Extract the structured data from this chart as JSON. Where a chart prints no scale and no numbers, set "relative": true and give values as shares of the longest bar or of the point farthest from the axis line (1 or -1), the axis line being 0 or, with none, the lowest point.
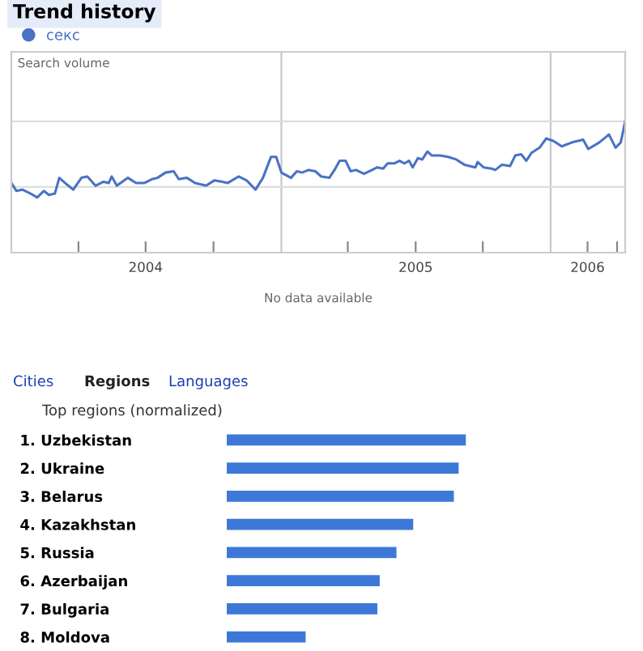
{
  "chart_data": [
    {
      "type": "line",
      "title": "Trend history",
      "relative": true,
      "legend": "top left",
      "grid": false,
      "marker": "none",
      "line_style": "solid",
      "xlim": [
        "2004-01-01",
        "2006-04-12"
      ],
      "xticks": [
        {
          "value": "2004-04-01",
          "label": null
        },
        {
          "value": "2004-07-01",
          "label": "2004"
        },
        {
          "value": "2004-10-01",
          "label": null
        },
        {
          "value": "2005-04-01",
          "label": null
        },
        {
          "value": "2005-07-02",
          "label": "2005"
        },
        {
          "value": "2005-10-01",
          "label": null
        },
        {
          "value": "2006-02-20",
          "label": "2006"
        },
        {
          "value": "2006-04-01",
          "label": null
        }
      ],
      "ref_lines": [
        {
          "axis": "x",
          "value": "2005-01-01",
          "label": null,
          "color": "#c8c8c8"
        },
        {
          "axis": "x",
          "value": "2006-01-01",
          "label": null,
          "color": "#c8c8c8"
        },
        {
          "axis": "y",
          "value": 1,
          "label": null,
          "color": "#dddddd"
        },
        {
          "axis": "y",
          "value": 0.5,
          "label": null,
          "color": "#dddddd"
        }
      ],
      "annotations": [
        "Search volume",
        "No data available"
      ],
      "series": [
        {
          "name": "секс",
          "color": "#4a72c4",
          "x": [
            "2004-01-01",
            "2004-01-08",
            "2004-01-16",
            "2004-01-27",
            "2004-02-05",
            "2004-02-14",
            "2004-02-21",
            "2004-02-29",
            "2004-03-06",
            "2004-03-14",
            "2004-03-25",
            "2004-04-05",
            "2004-04-13",
            "2004-04-24",
            "2004-05-05",
            "2004-05-12",
            "2004-05-16",
            "2004-05-23",
            "2004-06-07",
            "2004-06-18",
            "2004-06-29",
            "2004-07-10",
            "2004-07-17",
            "2004-07-28",
            "2004-08-08",
            "2004-08-15",
            "2004-08-26",
            "2004-09-06",
            "2004-09-21",
            "2004-10-02",
            "2004-10-13",
            "2004-10-20",
            "2004-11-04",
            "2004-11-15",
            "2004-11-27",
            "2004-12-07",
            "2004-12-18",
            "2004-12-25",
            "2005-01-01",
            "2005-01-14",
            "2005-01-22",
            "2005-01-29",
            "2005-02-07",
            "2005-02-16",
            "2005-02-24",
            "2005-03-07",
            "2005-03-14",
            "2005-03-21",
            "2005-03-29",
            "2005-04-05",
            "2005-04-12",
            "2005-04-23",
            "2005-05-04",
            "2005-05-11",
            "2005-05-19",
            "2005-05-25",
            "2005-06-03",
            "2005-06-10",
            "2005-06-17",
            "2005-06-23",
            "2005-06-28",
            "2005-07-05",
            "2005-07-11",
            "2005-07-18",
            "2005-07-24",
            "2005-08-04",
            "2005-08-15",
            "2005-08-26",
            "2005-09-06",
            "2005-09-21",
            "2005-09-24",
            "2005-10-02",
            "2005-10-13",
            "2005-10-18",
            "2005-10-27",
            "2005-11-07",
            "2005-11-14",
            "2005-11-22",
            "2005-11-29",
            "2005-12-06",
            "2005-12-17",
            "2005-12-26",
            "2006-01-05",
            "2006-01-16",
            "2006-01-30",
            "2006-02-14",
            "2006-02-21",
            "2006-03-08",
            "2006-03-21",
            "2006-03-30",
            "2006-04-06",
            "2006-04-12"
          ],
          "values": [
            0.53,
            0.47,
            0.48,
            0.45,
            0.42,
            0.47,
            0.44,
            0.45,
            0.57,
            0.53,
            0.48,
            0.57,
            0.58,
            0.51,
            0.54,
            0.53,
            0.58,
            0.51,
            0.57,
            0.53,
            0.53,
            0.56,
            0.57,
            0.61,
            0.62,
            0.56,
            0.57,
            0.53,
            0.51,
            0.55,
            0.54,
            0.53,
            0.58,
            0.55,
            0.48,
            0.57,
            0.73,
            0.73,
            0.61,
            0.57,
            0.62,
            0.61,
            0.63,
            0.62,
            0.58,
            0.57,
            0.63,
            0.7,
            0.7,
            0.62,
            0.63,
            0.6,
            0.63,
            0.65,
            0.64,
            0.68,
            0.68,
            0.7,
            0.68,
            0.7,
            0.65,
            0.72,
            0.71,
            0.77,
            0.74,
            0.74,
            0.73,
            0.71,
            0.67,
            0.65,
            0.69,
            0.65,
            0.64,
            0.63,
            0.67,
            0.66,
            0.74,
            0.75,
            0.7,
            0.76,
            0.8,
            0.87,
            0.85,
            0.81,
            0.84,
            0.86,
            0.79,
            0.84,
            0.9,
            0.8,
            0.84,
            1
          ]
        }
      ]
    },
    {
      "type": "bar",
      "orientation": "horizontal",
      "relative": true,
      "subtitle": "Top regions (normalized)",
      "annotations": [
        "Cities",
        "Regions",
        "Languages"
      ],
      "categories": [
        "1. Uzbekistan",
        "2. Ukraine",
        "3. Belarus",
        "4. Kazakhstan",
        "5. Russia",
        "6. Azerbaijan",
        "7. Bulgaria",
        "8. Moldova"
      ],
      "values": [
        1,
        0.97,
        0.95,
        0.78,
        0.71,
        0.64,
        0.63,
        0.33
      ],
      "color": "#3d78d8"
    }
  ]
}
